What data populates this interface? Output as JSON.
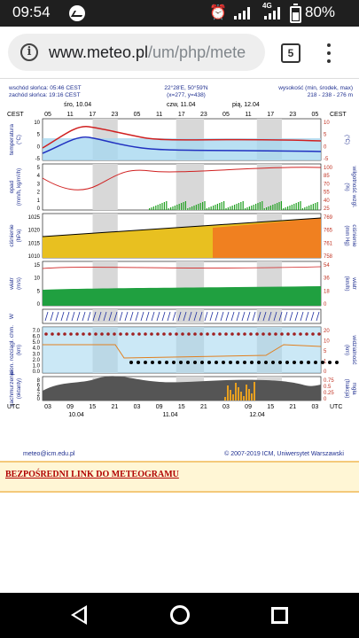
{
  "status": {
    "time": "09:54",
    "battery": "80%",
    "network": "4G"
  },
  "browser": {
    "url_host": "www.meteo.pl",
    "url_path": "/um/php/mete",
    "tab_count": "5"
  },
  "meteogram": {
    "sunrise": "wschód słońca: 05:46 CEST",
    "sunset": "zachód słońca: 19:16 CEST",
    "coords": "22°28'E, 50°59'N",
    "grid": "(x=277, y=438)",
    "altitude_title": "wysokość (min, środek, max)",
    "altitude_values": "218 - 238 - 276 m",
    "day1": "śro, 10.04",
    "day2": "czw, 11.04",
    "day3": "pią, 12.04",
    "tz_top": "CEST",
    "tz_bottom": "UTC",
    "top_hours": [
      "05",
      "11",
      "17",
      "23",
      "05",
      "11",
      "17",
      "23",
      "05",
      "11",
      "17",
      "23",
      "05"
    ],
    "bottom_hours": [
      "03",
      "09",
      "15",
      "21",
      "03",
      "09",
      "15",
      "21",
      "03",
      "09",
      "15",
      "21",
      "03"
    ],
    "bottom_dates": [
      "10.04",
      "11.04",
      "12.04"
    ],
    "panels": [
      {
        "left": "temperatura",
        "left_unit": "(°C)",
        "right": "",
        "right_unit": "(°C)",
        "lt": [
          "10",
          "5",
          "0",
          "-5"
        ],
        "rt": [
          "10",
          "5",
          "0",
          "-5"
        ]
      },
      {
        "left": "opad",
        "left_unit": "(mm/h, kg/m²/h)",
        "right": "wilgotność wzgl.",
        "right_unit": "(%)",
        "lt": [
          "5",
          "4",
          "3",
          "2",
          "1",
          "0"
        ],
        "rt": [
          "100",
          "85",
          "70",
          "55",
          "40",
          "25"
        ]
      },
      {
        "left": "ciśnienie",
        "left_unit": "(hPa)",
        "right": "ciśnienie",
        "right_unit": "(mm Hg)",
        "lt": [
          "1025",
          "1020",
          "1015",
          "1010"
        ],
        "rt": [
          "769",
          "765",
          "761",
          "758"
        ]
      },
      {
        "left": "wiatr",
        "left_unit": "(m/s)",
        "right": "wiatr",
        "right_unit": "(km/h)",
        "lt": [
          "15",
          "10",
          "5",
          "0"
        ],
        "rt": [
          "54",
          "36",
          "18",
          "0"
        ]
      },
      {
        "left": "W",
        "left_unit": "",
        "right": "",
        "right_unit": "",
        "lt": [],
        "rt": []
      },
      {
        "left": "pion. rozciągł. chm.",
        "left_unit": "(km)",
        "right": "widzialność",
        "right_unit": "(km)",
        "lt": [
          "7.0",
          "6.0",
          "5.0",
          "4.0",
          "3.0",
          "2.0",
          "1.0",
          "0.0"
        ],
        "rt": [
          "20",
          "10",
          "5",
          "1",
          "0"
        ]
      },
      {
        "left": "zachmurzenie",
        "left_unit": "(oktanty)",
        "right": "mgła",
        "right_unit": "(frakcja)",
        "lt": [
          "8",
          "6",
          "4",
          "2",
          "0"
        ],
        "rt": [
          "0.75",
          "0.5",
          "0.25",
          "0"
        ]
      }
    ],
    "email": "meteo@icm.edu.pl",
    "copyright": "© 2007-2019 ICM, Uniwersytet Warszawski"
  },
  "link": {
    "label": "BEZPOŚREDNI LINK DO METEOGRAMU"
  }
}
